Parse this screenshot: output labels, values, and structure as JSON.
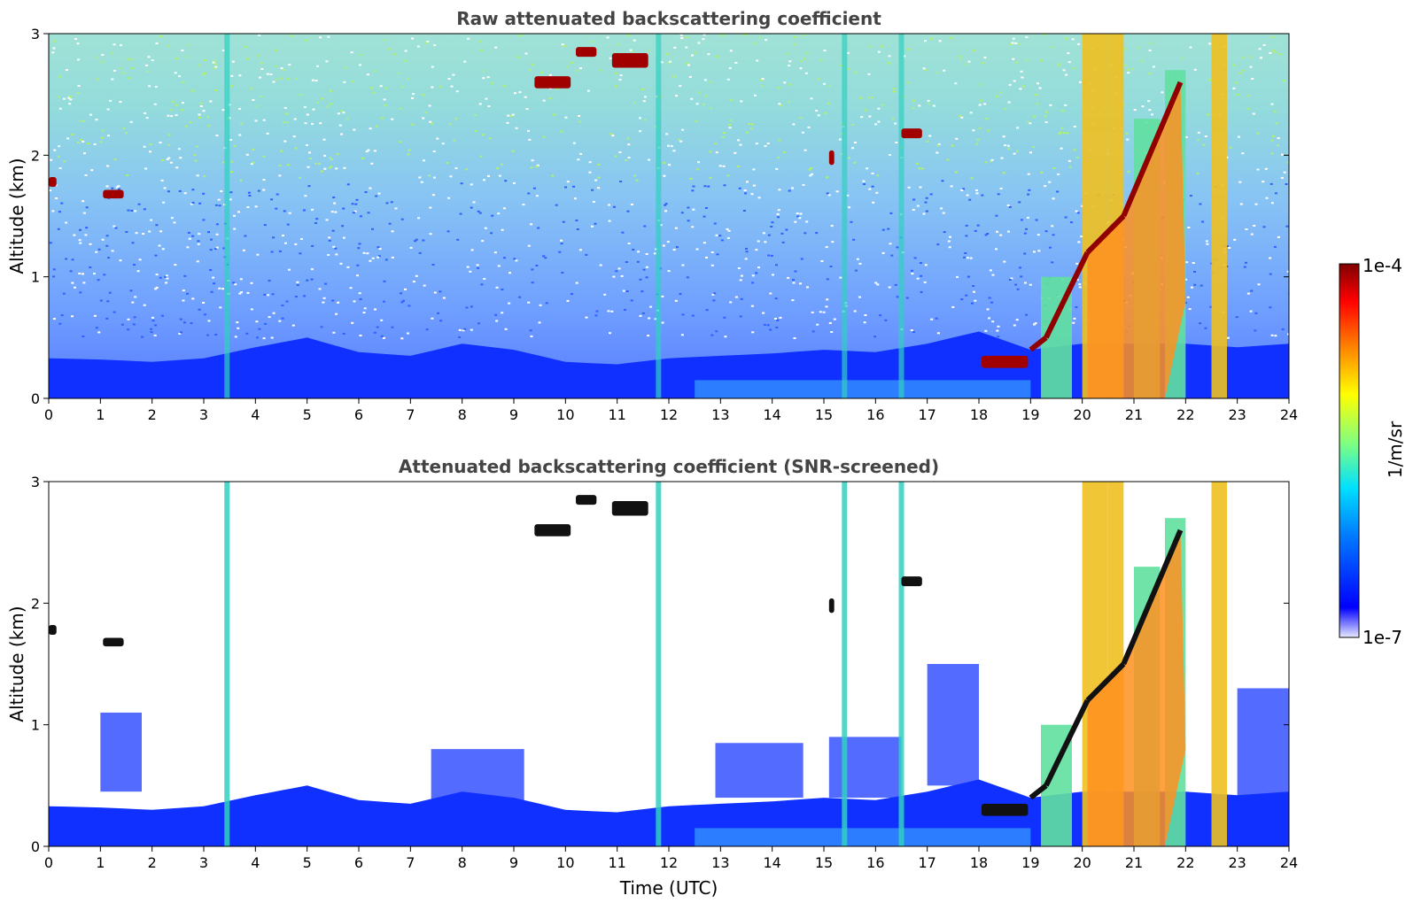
{
  "chart_data": [
    {
      "type": "heatmap",
      "title": "Raw attenuated backscattering coefficient",
      "xlabel": "",
      "ylabel": "Altitude (km)",
      "x_ticks": [
        "0",
        "1",
        "2",
        "3",
        "4",
        "5",
        "6",
        "7",
        "8",
        "9",
        "10",
        "11",
        "12",
        "13",
        "14",
        "15",
        "16",
        "17",
        "18",
        "19",
        "20",
        "21",
        "22",
        "23",
        "24"
      ],
      "y_ticks": [
        "0",
        "1",
        "2",
        "3"
      ],
      "xlim": [
        0,
        24
      ],
      "ylim": [
        0,
        3
      ],
      "boundary_layer_top_km": [
        [
          0,
          0.33
        ],
        [
          1,
          0.32
        ],
        [
          2,
          0.3
        ],
        [
          3,
          0.33
        ],
        [
          4,
          0.42
        ],
        [
          5,
          0.5
        ],
        [
          6,
          0.38
        ],
        [
          7,
          0.35
        ],
        [
          8,
          0.45
        ],
        [
          9,
          0.4
        ],
        [
          10,
          0.3
        ],
        [
          11,
          0.28
        ],
        [
          12,
          0.33
        ],
        [
          13,
          0.35
        ],
        [
          14,
          0.37
        ],
        [
          15,
          0.4
        ],
        [
          16,
          0.38
        ],
        [
          17,
          0.45
        ],
        [
          18,
          0.55
        ],
        [
          19,
          0.4
        ],
        [
          20,
          0.45
        ],
        [
          21,
          0.45
        ],
        [
          22,
          0.45
        ],
        [
          23,
          0.42
        ],
        [
          24,
          0.45
        ]
      ],
      "bright_columns_h": [
        3.45,
        11.8,
        15.4,
        16.5
      ],
      "clouds": [
        {
          "x0": 0.0,
          "x1": 0.15,
          "y": 1.78,
          "thick": 0.08
        },
        {
          "x0": 1.05,
          "x1": 1.45,
          "y": 1.68,
          "thick": 0.07
        },
        {
          "x0": 9.4,
          "x1": 10.1,
          "y": 2.6,
          "thick": 0.1
        },
        {
          "x0": 10.2,
          "x1": 10.6,
          "y": 2.85,
          "thick": 0.08
        },
        {
          "x0": 10.9,
          "x1": 11.6,
          "y": 2.78,
          "thick": 0.12
        },
        {
          "x0": 15.1,
          "x1": 15.2,
          "y": 1.98,
          "thick": 0.12
        },
        {
          "x0": 16.5,
          "x1": 16.9,
          "y": 2.18,
          "thick": 0.08
        },
        {
          "x0": 18.05,
          "x1": 18.95,
          "y": 0.3,
          "thick": 0.1
        }
      ],
      "plumes": [
        {
          "x0": 19.0,
          "y0": 0.4,
          "x1": 19.3,
          "y1": 0.5
        },
        {
          "x0": 19.3,
          "y0": 0.5,
          "x1": 20.1,
          "y1": 1.2
        },
        {
          "x0": 20.1,
          "y0": 1.2,
          "x1": 20.8,
          "y1": 1.5
        },
        {
          "x0": 20.8,
          "y0": 1.5,
          "x1": 21.9,
          "y1": 2.6
        }
      ],
      "plume_columns": [
        {
          "x0": 19.2,
          "x1": 19.8,
          "top": 1.0
        },
        {
          "x0": 20.0,
          "x1": 20.5,
          "top": 3.0
        },
        {
          "x0": 20.5,
          "x1": 20.8,
          "top": 3.0
        },
        {
          "x0": 21.0,
          "x1": 21.5,
          "top": 2.3
        },
        {
          "x0": 21.6,
          "x1": 22.0,
          "top": 2.7
        },
        {
          "x0": 22.5,
          "x1": 22.8,
          "top": 3.0
        }
      ]
    },
    {
      "type": "heatmap",
      "title": "Attenuated backscattering coefficient (SNR-screened)",
      "xlabel": "Time (UTC)",
      "ylabel": "Altitude (km)",
      "x_ticks": [
        "0",
        "1",
        "2",
        "3",
        "4",
        "5",
        "6",
        "7",
        "8",
        "9",
        "10",
        "11",
        "12",
        "13",
        "14",
        "15",
        "16",
        "17",
        "18",
        "19",
        "20",
        "21",
        "22",
        "23",
        "24"
      ],
      "y_ticks": [
        "0",
        "1",
        "2",
        "3"
      ],
      "xlim": [
        0,
        24
      ],
      "ylim": [
        0,
        3
      ],
      "screened": true
    }
  ],
  "colorbar": {
    "label": "1/m/sr",
    "max_label": "1e-4",
    "min_label": "1e-7",
    "colors": [
      "#e8e8ff",
      "#0000ff",
      "#0080ff",
      "#00e0ff",
      "#80ff80",
      "#ffff00",
      "#ff8000",
      "#ff0000",
      "#800000"
    ]
  }
}
